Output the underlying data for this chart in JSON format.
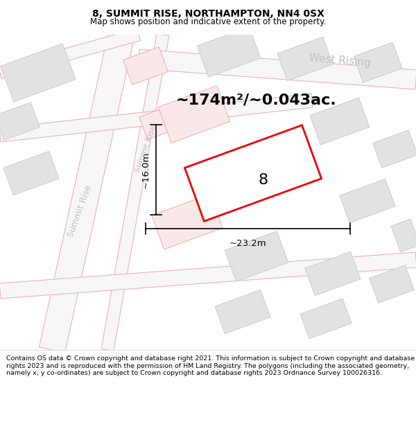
{
  "title": "8, SUMMIT RISE, NORTHAMPTON, NN4 0SX",
  "subtitle": "Map shows position and indicative extent of the property.",
  "footer": "Contains OS data © Crown copyright and database right 2021. This information is subject to Crown copyright and database rights 2023 and is reproduced with the permission of HM Land Registry. The polygons (including the associated geometry, namely x, y co-ordinates) are subject to Crown copyright and database rights 2023 Ordnance Survey 100026316.",
  "map_bg": "#f7f7f7",
  "road_fill": "#f7f7f7",
  "road_outline": "#f0b0b0",
  "building_fill": "#e2e2e2",
  "building_edge": "#cccccc",
  "highlight_fill": "#ffffff",
  "highlight_edge": "#ee0000",
  "highlight_lw": 2.0,
  "road_label_color": "#bbbbbb",
  "area_text": "~174m²/~0.043ac.",
  "number_label": "8",
  "dim_width": "~23.2m",
  "dim_height": "~16.0m",
  "west_rising_label": "West Rising",
  "summit_rise_label1": "Summit Rise",
  "summit_rise_label2": "Summit Rise"
}
